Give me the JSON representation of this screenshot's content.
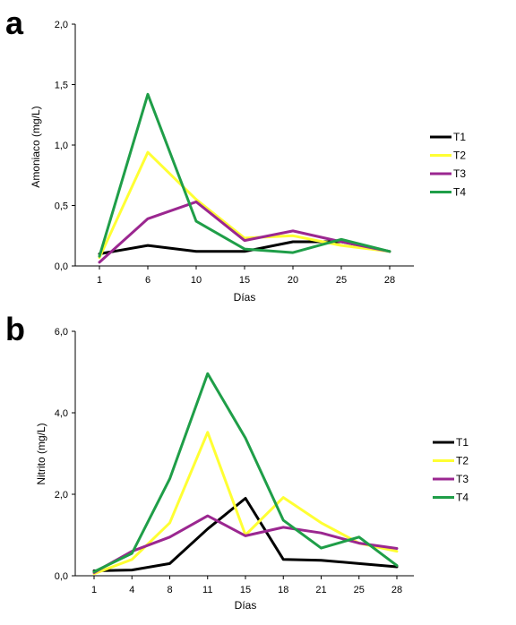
{
  "chart_data": [
    {
      "panel": "a",
      "type": "line",
      "xlabel": "Días",
      "ylabel": "Amoniaco (mg/L)",
      "categories": [
        "1",
        "6",
        "10",
        "15",
        "20",
        "25",
        "28"
      ],
      "yticks": [
        "0,0",
        "0,5",
        "1,0",
        "1,5",
        "2,0"
      ],
      "ylim": [
        0,
        2
      ],
      "legend_position": "right",
      "grid": false,
      "series": [
        {
          "name": "T1",
          "color": "#000000",
          "values": [
            0.1,
            0.17,
            0.12,
            0.12,
            0.2,
            0.2,
            0.12
          ]
        },
        {
          "name": "T2",
          "color": "#ffff33",
          "values": [
            0.07,
            0.94,
            0.55,
            0.23,
            0.25,
            0.17,
            0.12
          ]
        },
        {
          "name": "T3",
          "color": "#9b2790",
          "values": [
            0.03,
            0.39,
            0.53,
            0.21,
            0.29,
            0.2,
            0.12
          ]
        },
        {
          "name": "T4",
          "color": "#1f9e48",
          "values": [
            0.08,
            1.42,
            0.37,
            0.14,
            0.11,
            0.22,
            0.12
          ]
        }
      ]
    },
    {
      "panel": "b",
      "type": "line",
      "xlabel": "Días",
      "ylabel": "Nitrito (mg/L)",
      "categories": [
        "1",
        "4",
        "8",
        "11",
        "15",
        "18",
        "21",
        "25",
        "28"
      ],
      "yticks": [
        "0,0",
        "2,0",
        "4,0",
        "6,0"
      ],
      "ylim": [
        0,
        6
      ],
      "legend_position": "right",
      "grid": false,
      "series": [
        {
          "name": "T1",
          "color": "#000000",
          "values": [
            0.12,
            0.14,
            0.3,
            1.15,
            1.9,
            0.4,
            0.38,
            0.3,
            0.22
          ]
        },
        {
          "name": "T2",
          "color": "#ffff33",
          "values": [
            0.05,
            0.4,
            1.3,
            3.52,
            1.0,
            1.92,
            1.3,
            0.8,
            0.6
          ]
        },
        {
          "name": "T3",
          "color": "#9b2790",
          "values": [
            0.08,
            0.6,
            0.95,
            1.47,
            0.98,
            1.19,
            1.05,
            0.8,
            0.67
          ]
        },
        {
          "name": "T4",
          "color": "#1f9e48",
          "values": [
            0.1,
            0.55,
            2.38,
            4.96,
            3.38,
            1.36,
            0.68,
            0.95,
            0.25
          ]
        }
      ]
    }
  ]
}
